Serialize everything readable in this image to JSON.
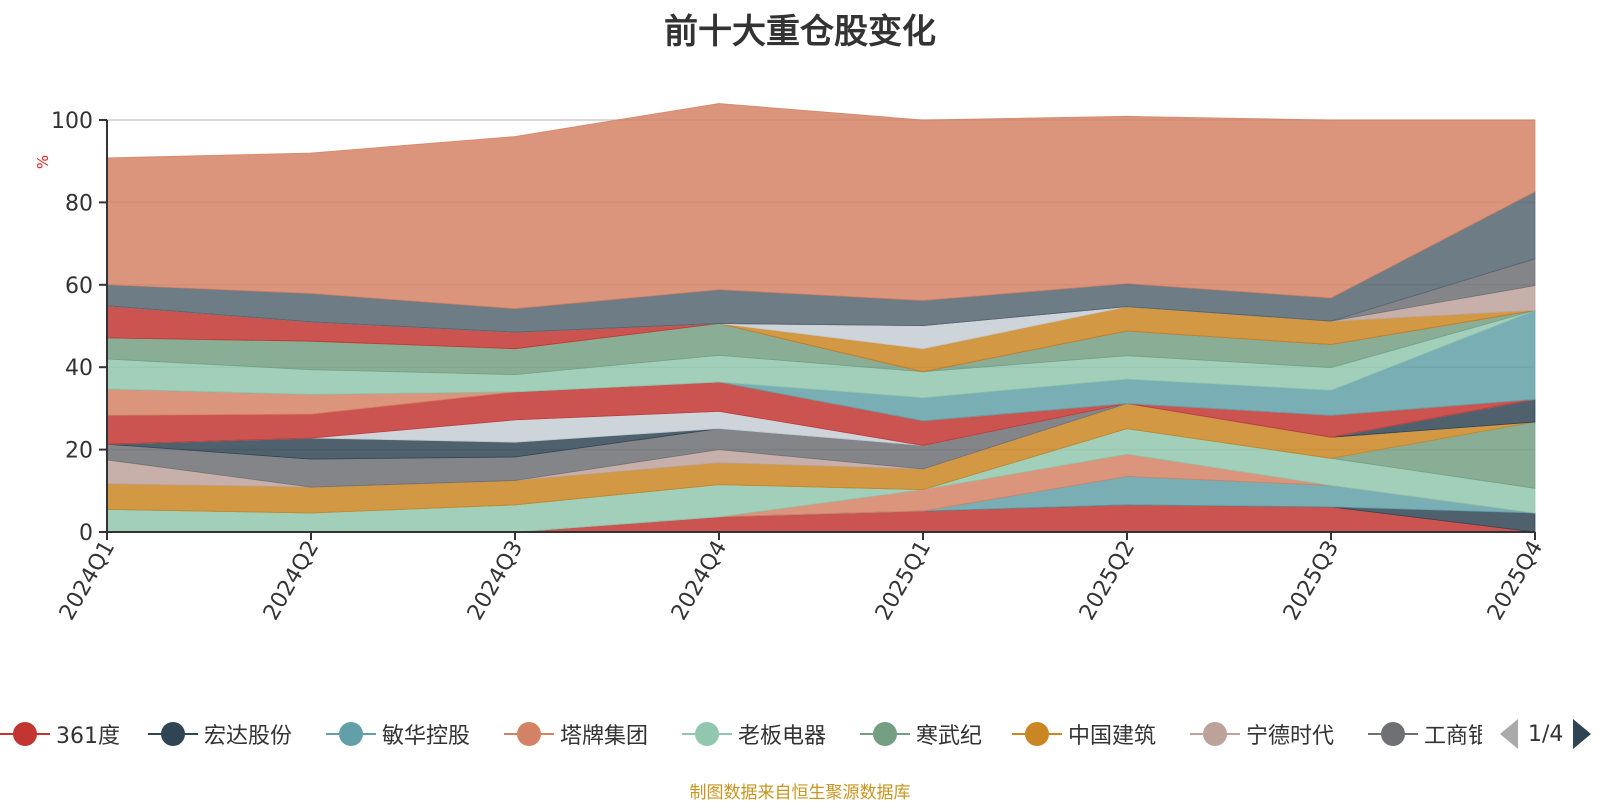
{
  "title": "前十大重仓股变化",
  "source_note": "制图数据来自恒生聚源数据库",
  "legend": {
    "page_indicator": "1/4",
    "items": [
      {
        "label": "361度",
        "color": "#c23531"
      },
      {
        "label": "宏达股份",
        "color": "#2f4554"
      },
      {
        "label": "敏华控股",
        "color": "#61a0a8"
      },
      {
        "label": "塔牌集团",
        "color": "#d48265"
      },
      {
        "label": "老板电器",
        "color": "#91c7ae"
      },
      {
        "label": "寒武纪",
        "color": "#749f83"
      },
      {
        "label": "中国建筑",
        "color": "#ca8622"
      },
      {
        "label": "宁德时代",
        "color": "#bda29a"
      },
      {
        "label": "工商银",
        "color": "#6e7074"
      }
    ]
  },
  "chart_data": {
    "type": "area",
    "stacked": true,
    "ylabel": "%",
    "ylim": [
      0,
      100
    ],
    "yticks": [
      0,
      20,
      40,
      60,
      80,
      100
    ],
    "categories": [
      "2024Q1",
      "2024Q2",
      "2024Q3",
      "2024Q4",
      "2025Q1",
      "2025Q2",
      "2025Q3",
      "2025Q4"
    ],
    "grid": true,
    "legend_position": "bottom",
    "series": [
      {
        "color": "#c23531",
        "values": [
          0,
          0,
          0,
          3.7,
          5.1,
          6.6,
          6.1,
          0
        ]
      },
      {
        "color": "#2f4554",
        "values": [
          0,
          0,
          0,
          0,
          0,
          0,
          0,
          4.6
        ]
      },
      {
        "color": "#61a0a8",
        "values": [
          0,
          0,
          0,
          0,
          0,
          6.9,
          5.2,
          0
        ]
      },
      {
        "color": "#d48265",
        "values": [
          0,
          0,
          0,
          0,
          5.2,
          5.4,
          0,
          0
        ]
      },
      {
        "color": "#91c7ae",
        "values": [
          5.5,
          4.6,
          6.6,
          7.8,
          0,
          6.2,
          6.6,
          6.0
        ]
      },
      {
        "color": "#749f83",
        "values": [
          0,
          0,
          0,
          0,
          0,
          0,
          0,
          16.1
        ]
      },
      {
        "color": "#ca8622",
        "values": [
          6.2,
          6.3,
          5.9,
          5.3,
          5.0,
          6.1,
          5.1,
          0
        ]
      },
      {
        "color": "#bda29a",
        "values": [
          5.8,
          0,
          0,
          3.2,
          0,
          0,
          0,
          0
        ]
      },
      {
        "color": "#6e7074",
        "values": [
          3.8,
          6.8,
          5.7,
          5.1,
          5.7,
          0,
          0,
          0
        ]
      },
      {
        "color": "#2f4554",
        "values": [
          0,
          5.1,
          3.6,
          0,
          0,
          0,
          0,
          5.5
        ]
      },
      {
        "color": "#c4ccd3",
        "values": [
          0,
          0,
          5.4,
          4.2,
          0,
          0,
          0,
          0
        ]
      },
      {
        "color": "#c23531",
        "values": [
          7.0,
          5.8,
          6.8,
          7.1,
          6.0,
          0,
          5.3,
          0
        ]
      },
      {
        "color": "#d48265",
        "values": [
          6.4,
          4.8,
          0,
          0,
          0,
          0,
          0,
          0
        ]
      },
      {
        "color": "#61a0a8",
        "values": [
          0,
          0,
          0,
          0,
          5.6,
          5.9,
          6.1,
          21.6
        ]
      },
      {
        "color": "#91c7ae",
        "values": [
          7.3,
          6.0,
          4.2,
          6.5,
          6.3,
          5.7,
          5.5,
          0
        ]
      },
      {
        "color": "#749f83",
        "values": [
          5.1,
          6.9,
          6.3,
          7.7,
          0,
          6.0,
          5.6,
          0
        ]
      },
      {
        "color": "#c23531",
        "values": [
          7.8,
          4.7,
          4.0,
          0,
          0,
          0,
          0,
          0
        ]
      },
      {
        "color": "#ca8622",
        "values": [
          0,
          0,
          0,
          0,
          5.6,
          5.9,
          5.7,
          0
        ]
      },
      {
        "color": "#c4ccd3",
        "values": [
          0,
          0,
          0,
          0,
          5.6,
          0,
          0,
          0
        ]
      },
      {
        "color": "#bda29a",
        "values": [
          0,
          0,
          0,
          0,
          0,
          0,
          0,
          6.0
        ]
      },
      {
        "color": "#6e7074",
        "values": [
          0,
          0,
          0,
          0,
          0,
          0,
          0,
          6.5
        ]
      },
      {
        "color": "#546570",
        "values": [
          5.1,
          6.9,
          5.7,
          8.2,
          6.1,
          5.6,
          5.6,
          16.3
        ]
      },
      {
        "color": "#d48265",
        "values": [
          30.8,
          34.1,
          41.8,
          45.2,
          43.8,
          40.6,
          43.2,
          17.4
        ]
      }
    ]
  }
}
